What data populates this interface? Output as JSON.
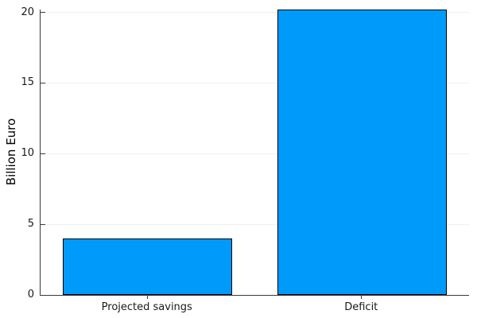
{
  "chart_data": {
    "type": "bar",
    "categories": [
      "Projected savings",
      "Deficit"
    ],
    "values": [
      4,
      20.2
    ],
    "title": "",
    "xlabel": "",
    "ylabel": "Billion Euro",
    "ylim": [
      0,
      20.2
    ],
    "yticks": [
      0,
      5,
      10,
      15,
      20
    ],
    "grid": true,
    "legend": "none",
    "bar_fill_color": "#009AFA",
    "bar_edge_color": "#000000",
    "axis_color": "#3a3a3a",
    "grid_color": "#f0f0f0",
    "tick_label_color": "#1a1a1a",
    "background_color": "#ffffff",
    "bar_width_fraction": 0.79
  }
}
